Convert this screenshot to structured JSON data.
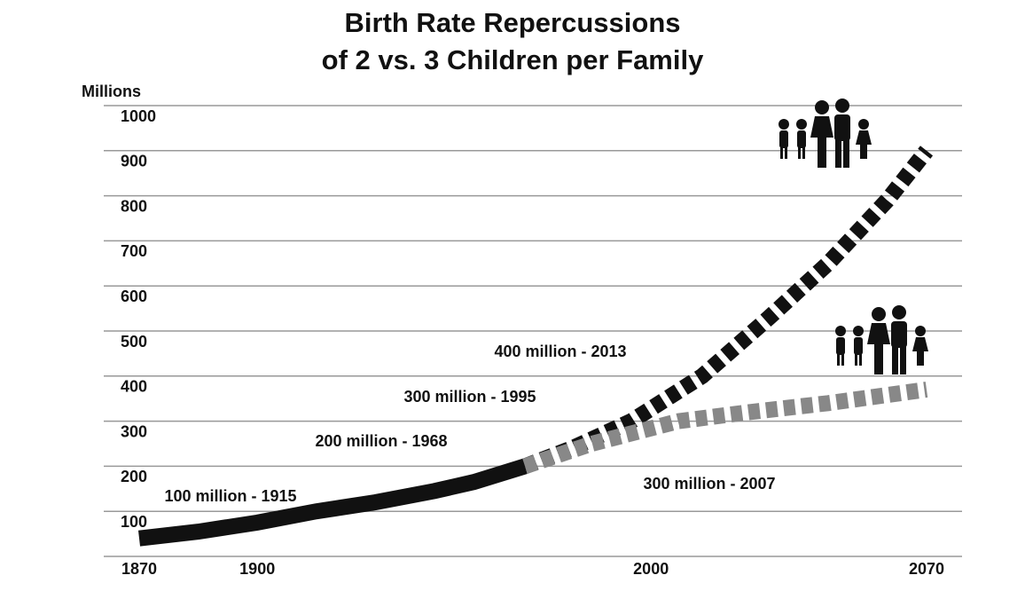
{
  "chart_data": {
    "type": "line",
    "title": [
      "Birth Rate Repercussions",
      "of 2 vs. 3 Children per Family"
    ],
    "y_label": "Millions",
    "xlim": [
      1870,
      2070
    ],
    "xticks": [
      1870,
      1900,
      2000,
      2070
    ],
    "ylim": [
      0,
      1000
    ],
    "yticks": [
      100,
      200,
      300,
      400,
      500,
      600,
      700,
      800,
      900,
      1000
    ],
    "grid": true,
    "series": [
      {
        "color": "#111111",
        "style": "solid",
        "x": [
          1870,
          1885,
          1900,
          1915,
          1930,
          1945,
          1955,
          1968
        ],
        "values": [
          40,
          55,
          75,
          100,
          120,
          145,
          165,
          200
        ]
      },
      {
        "color": "#111111",
        "style": "dashed",
        "x": [
          1968,
          1980,
          1995,
          2013,
          2030,
          2045,
          2060,
          2070
        ],
        "values": [
          200,
          240,
          300,
          400,
          530,
          650,
          790,
          900
        ]
      },
      {
        "color": "#888888",
        "style": "dashed",
        "x": [
          1968,
          1985,
          2007,
          2025,
          2045,
          2070
        ],
        "values": [
          200,
          250,
          300,
          320,
          340,
          370
        ]
      }
    ],
    "annotations": [
      "100 million - 1915",
      "200 million - 1968",
      "300 million - 1995",
      "400 million - 2013",
      "300 million - 2007"
    ]
  }
}
